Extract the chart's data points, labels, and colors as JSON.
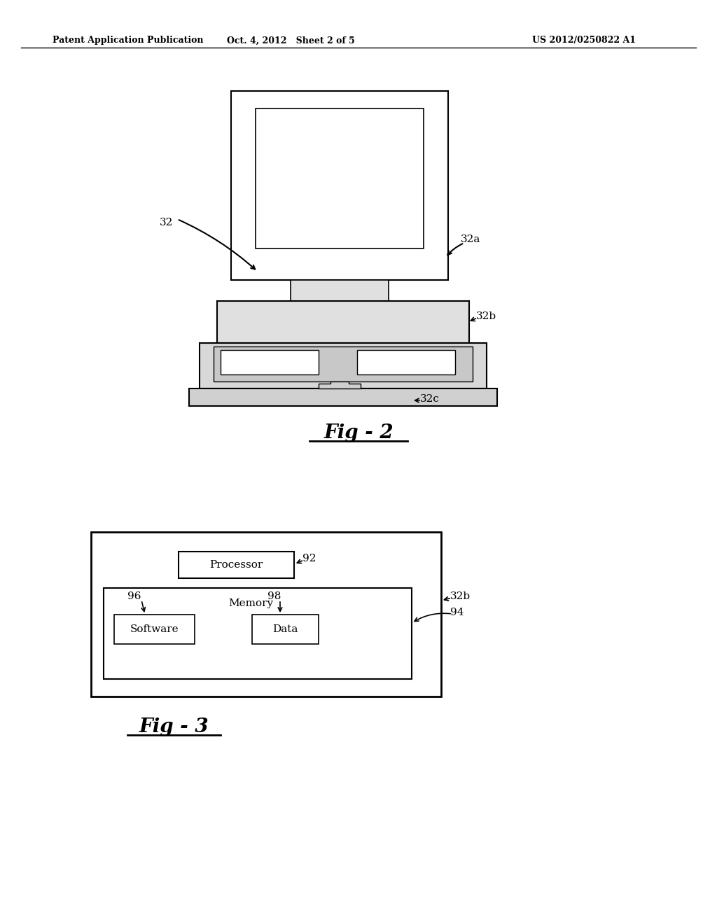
{
  "bg_color": "#ffffff",
  "header_left": "Patent Application Publication",
  "header_mid": "Oct. 4, 2012   Sheet 2 of 5",
  "header_right": "US 2012/0250822 A1",
  "fig2_label": "Fig - 2",
  "fig3_label": "Fig - 3",
  "label_32": "32",
  "label_32a": "32a",
  "label_32b_top": "32b",
  "label_32c": "32c",
  "label_32b_bottom": "32b",
  "label_94": "94",
  "label_92": "92",
  "label_96": "96",
  "label_98": "98",
  "label_processor": "Processor",
  "label_memory": "Memory",
  "label_software": "Software",
  "label_data": "Data"
}
